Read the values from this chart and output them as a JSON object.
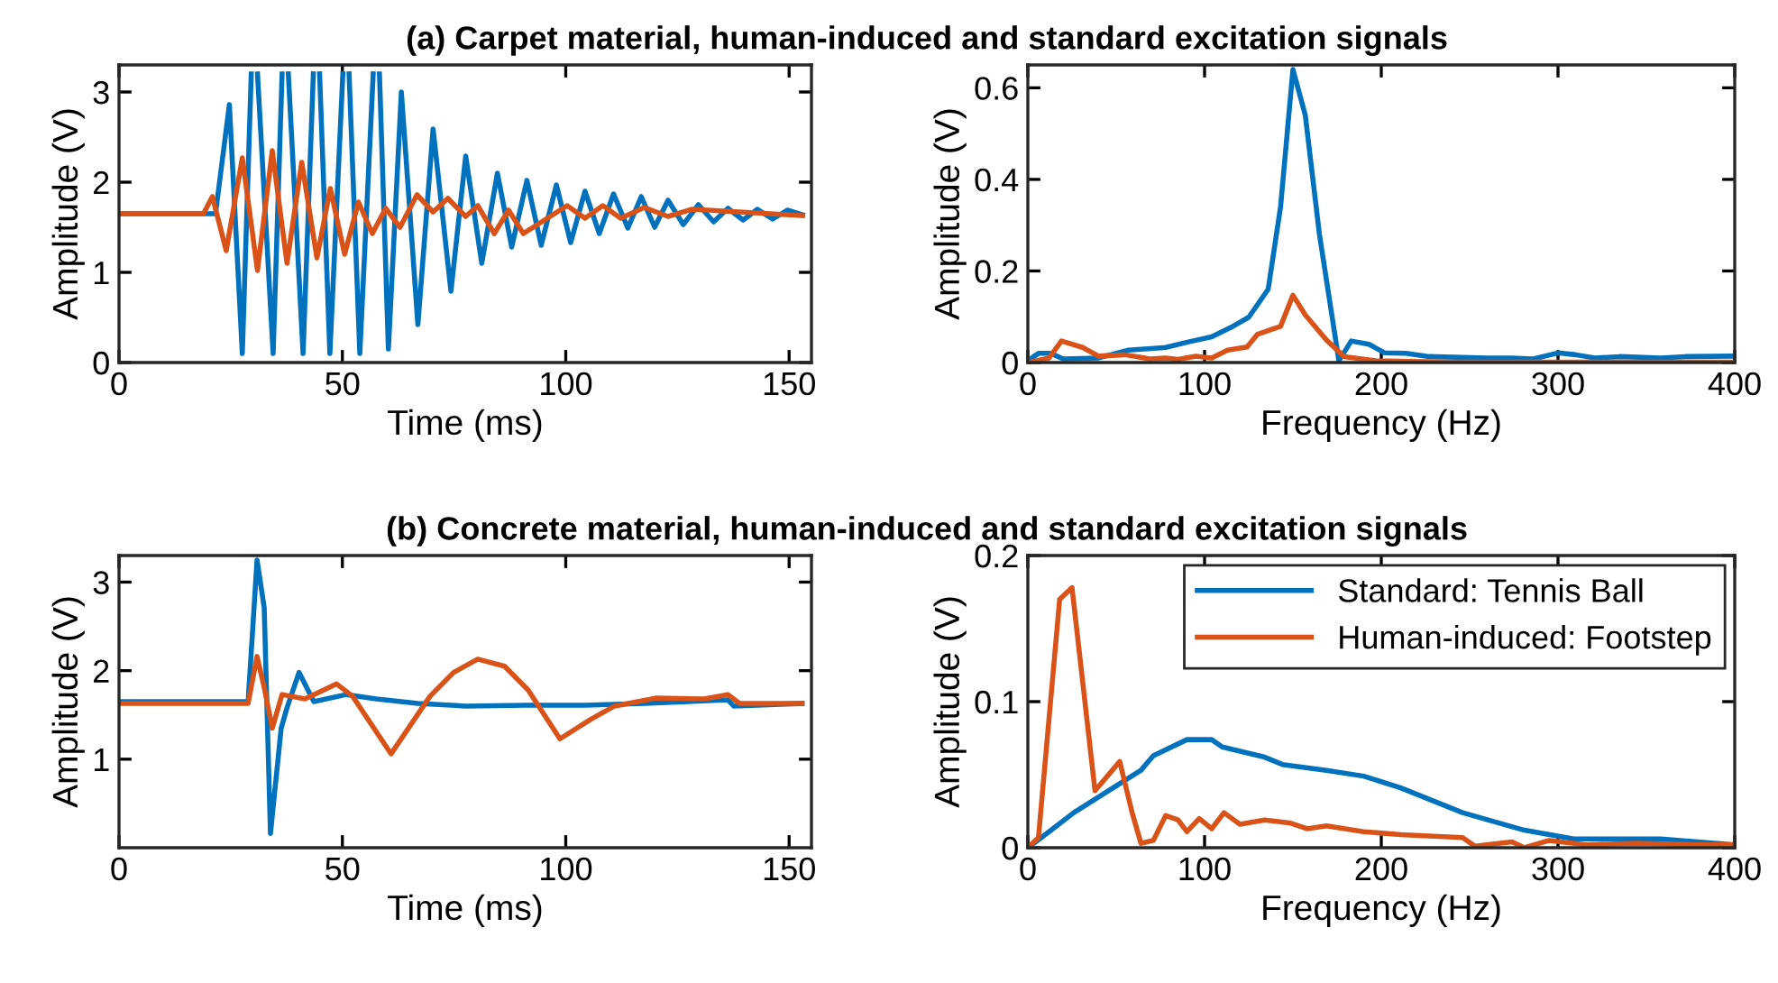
{
  "chart_data": [
    {
      "type": "line",
      "title": "(a) Carpet material, human-induced and standard excitation signals",
      "xlabel": "Time (ms)",
      "ylabel": "Amplitude (V)",
      "xlim": [
        0,
        155
      ],
      "xticks": [
        0,
        50,
        100,
        150
      ],
      "ylim": [
        0,
        3.3
      ],
      "yticks": [
        0,
        1,
        2,
        3
      ],
      "grid": false,
      "legend": false,
      "series": [
        {
          "color": "#0072bd",
          "x": [
            0,
            21.6,
            24.7,
            27.6,
            29.6,
            30.3,
            31.0,
            34.5,
            36.5,
            37.2,
            37.9,
            41.2,
            43.5,
            44.2,
            44.9,
            47.2,
            50.1,
            50.8,
            51.5,
            53.9,
            56.9,
            57.6,
            58.3,
            60.3,
            63.2,
            66.9,
            70.3,
            74.3,
            77.6,
            81.2,
            84.7,
            87.9,
            91.3,
            94.5,
            97.9,
            101.1,
            104.3,
            107.5,
            110.7,
            113.9,
            116.9,
            119.9,
            122.9,
            126.3,
            129.7,
            133.1,
            136.3,
            139.7,
            142.9,
            146.3,
            149.6,
            153
          ],
          "values": [
            1.65,
            1.65,
            2.86,
            0.1,
            3.2,
            null,
            3.2,
            0.1,
            3.2,
            null,
            3.2,
            0.1,
            3.2,
            null,
            3.2,
            0.1,
            3.2,
            null,
            3.2,
            0.1,
            3.2,
            null,
            3.2,
            0.15,
            3.0,
            0.42,
            2.59,
            0.79,
            2.29,
            1.1,
            2.1,
            1.28,
            2.02,
            1.3,
            1.97,
            1.33,
            1.9,
            1.43,
            1.87,
            1.49,
            1.84,
            1.5,
            1.8,
            1.53,
            1.75,
            1.56,
            1.71,
            1.58,
            1.7,
            1.59,
            1.69,
            1.64
          ]
        },
        {
          "color": "#d95319",
          "x": [
            0,
            18.9,
            20.9,
            24.0,
            27.6,
            31.0,
            34.3,
            37.6,
            40.9,
            44.3,
            47.3,
            50.5,
            53.6,
            56.7,
            59.7,
            62.9,
            66.7,
            70.3,
            73.6,
            77.6,
            80.3,
            84.0,
            87.2,
            90.5,
            100.3,
            104.3,
            108.3,
            112.3,
            117.6,
            122.9,
            128.3,
            153
          ],
          "values": [
            1.65,
            1.65,
            1.84,
            1.24,
            2.27,
            1.02,
            2.35,
            1.1,
            2.22,
            1.16,
            1.93,
            1.2,
            1.78,
            1.43,
            1.71,
            1.5,
            1.86,
            1.67,
            1.82,
            1.62,
            1.74,
            1.43,
            1.69,
            1.43,
            1.74,
            1.6,
            1.74,
            1.6,
            1.72,
            1.62,
            1.7,
            1.63
          ]
        }
      ]
    },
    {
      "type": "line",
      "xlabel": "Frequency (Hz)",
      "ylabel": "Amplitude (V)",
      "xlim": [
        0,
        400
      ],
      "xticks": [
        0,
        100,
        200,
        300,
        400
      ],
      "ylim": [
        0,
        0.65
      ],
      "yticks": [
        0,
        0.2,
        0.4,
        0.6
      ],
      "grid": false,
      "legend": false,
      "series": [
        {
          "color": "#0072bd",
          "x": [
            0,
            6,
            13,
            20,
            40,
            57,
            78,
            92,
            104,
            116,
            125,
            136,
            143,
            150,
            157,
            165,
            176,
            183,
            193,
            202,
            214,
            227,
            260,
            274,
            286,
            300,
            310,
            321,
            335,
            358,
            372,
            400
          ],
          "values": [
            0.004,
            0.02,
            0.02,
            0.008,
            0.01,
            0.027,
            0.033,
            0.046,
            0.056,
            0.079,
            0.099,
            0.16,
            0.34,
            0.64,
            0.54,
            0.28,
            0.004,
            0.047,
            0.04,
            0.021,
            0.02,
            0.013,
            0.01,
            0.01,
            0.008,
            0.021,
            0.017,
            0.01,
            0.013,
            0.01,
            0.013,
            0.014
          ]
        },
        {
          "color": "#d95319",
          "x": [
            0,
            12,
            19,
            31,
            40,
            55,
            69,
            78,
            85,
            95,
            104,
            113,
            124,
            130,
            143,
            150,
            157,
            169,
            179,
            197,
            239,
            400
          ],
          "values": [
            0,
            0.01,
            0.047,
            0.033,
            0.014,
            0.017,
            0.008,
            0.01,
            0.007,
            0.014,
            0.01,
            0.027,
            0.034,
            0.062,
            0.079,
            0.147,
            0.104,
            0.049,
            0.013,
            0.004,
            0.001,
            0.001
          ]
        }
      ]
    },
    {
      "type": "line",
      "title": "(b) Concrete material, human-induced and standard excitation signals",
      "xlabel": "Time (ms)",
      "ylabel": "Amplitude (V)",
      "xlim": [
        0,
        155
      ],
      "xticks": [
        0,
        50,
        100,
        150
      ],
      "ylim": [
        0,
        3.3
      ],
      "yticks": [
        1,
        2,
        3
      ],
      "grid": false,
      "legend": false,
      "series": [
        {
          "color": "#0072bd",
          "x": [
            0,
            28.9,
            30.9,
            32.5,
            33.9,
            36.3,
            37.6,
            40.3,
            43.6,
            50.9,
            57.6,
            66.9,
            77.6,
            90.9,
            104.3,
            117.6,
            136.3,
            137.6,
            152.9
          ],
          "values": [
            1.65,
            1.65,
            3.25,
            2.71,
            0.16,
            1.35,
            1.58,
            1.98,
            1.65,
            1.73,
            1.68,
            1.63,
            1.6,
            1.61,
            1.61,
            1.63,
            1.67,
            1.6,
            1.63
          ]
        },
        {
          "color": "#d95319",
          "x": [
            0,
            28.9,
            30.9,
            32.5,
            34.3,
            36.5,
            41.6,
            48.7,
            52.3,
            60.9,
            69.6,
            74.9,
            80.3,
            86.3,
            91.6,
            98.7,
            105.6,
            110.9,
            120.3,
            131,
            136.3,
            138.9,
            152.9
          ],
          "values": [
            1.63,
            1.63,
            2.16,
            1.81,
            1.35,
            1.73,
            1.68,
            1.85,
            1.71,
            1.06,
            1.71,
            1.98,
            2.13,
            2.05,
            1.78,
            1.23,
            1.45,
            1.6,
            1.69,
            1.68,
            1.73,
            1.63,
            1.63
          ]
        }
      ]
    },
    {
      "type": "line",
      "xlabel": "Frequency (Hz)",
      "ylabel": "Amplitude (V)",
      "xlim": [
        0,
        400
      ],
      "xticks": [
        0,
        100,
        200,
        300,
        400
      ],
      "ylim": [
        0,
        0.2
      ],
      "yticks": [
        0,
        0.1,
        0.2
      ],
      "grid": false,
      "legend": "top right",
      "series": [
        {
          "name": "Standard: Tennis Ball",
          "color": "#0072bd",
          "x": [
            0,
            12,
            26,
            47,
            64,
            71,
            90,
            104,
            110,
            134,
            144,
            169,
            190,
            211,
            246,
            281,
            309,
            358,
            400
          ],
          "values": [
            0,
            0.011,
            0.024,
            0.04,
            0.053,
            0.063,
            0.074,
            0.074,
            0.069,
            0.062,
            0.057,
            0.053,
            0.049,
            0.041,
            0.024,
            0.012,
            0.006,
            0.006,
            0.002
          ]
        },
        {
          "name": "Human-induced: Footstep",
          "color": "#d95319",
          "x": [
            0,
            6,
            18,
            25,
            38,
            52,
            59,
            64,
            71,
            78,
            85,
            90,
            97,
            104,
            111,
            120,
            134,
            148,
            158,
            169,
            190,
            211,
            246,
            253,
            274,
            281,
            295,
            316,
            344,
            379,
            400
          ],
          "values": [
            0,
            0.007,
            0.17,
            0.178,
            0.039,
            0.059,
            0.024,
            0.003,
            0.005,
            0.022,
            0.019,
            0.011,
            0.02,
            0.013,
            0.024,
            0.016,
            0.019,
            0.017,
            0.013,
            0.015,
            0.011,
            0.009,
            0.007,
            0.001,
            0.004,
            0,
            0.005,
            0.002,
            0.003,
            0.002,
            0.002
          ]
        }
      ]
    }
  ]
}
